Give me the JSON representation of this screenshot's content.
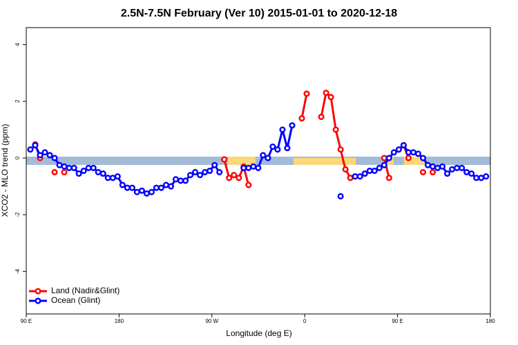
{
  "chart_data": {
    "type": "line",
    "title": "2.5N-7.5N February (Ver 10)   2015-01-01 to 2020-12-18",
    "x_label": "Longitude (deg E)",
    "y_label": "XCO2 - MLO trend (ppm)",
    "xlim": [
      90,
      540
    ],
    "ylim": [
      -5.5,
      4.6
    ],
    "xticks": [
      {
        "value": 90,
        "label": "90 E"
      },
      {
        "value": 180,
        "label": "180"
      },
      {
        "value": 270,
        "label": "90 W"
      },
      {
        "value": 360,
        "label": "0"
      },
      {
        "value": 450,
        "label": "90 E"
      },
      {
        "value": 540,
        "label": "180"
      }
    ],
    "yticks": [
      -4,
      -2,
      0,
      2,
      4
    ],
    "legend": "bottom-left",
    "x": [
      94,
      98.7,
      103.4,
      108.1,
      112.8,
      117.5,
      122.2,
      126.9,
      131.6,
      136.3,
      141,
      145.7,
      150.4,
      155.1,
      159.8,
      164.5,
      169.2,
      173.9,
      178.6,
      183.3,
      188,
      192.7,
      197.4,
      202.1,
      206.8,
      211.5,
      216.2,
      220.9,
      225.6,
      230.3,
      235,
      239.7,
      244.4,
      249.1,
      253.8,
      258.5,
      263.2,
      267.9,
      272.6,
      277.3,
      282,
      286.7,
      291.4,
      296.1,
      300.8,
      305.5,
      310.2,
      314.9,
      319.6,
      324.3,
      329,
      333.7,
      338.4,
      343.1,
      347.8,
      352.5,
      357.2,
      361.9,
      366.6,
      371.3,
      376,
      380.7,
      385.4,
      390.1,
      394.8,
      399.5,
      404.2,
      408.9,
      413.6,
      418.3,
      423,
      427.7,
      432.4,
      437.1,
      441.8,
      446.5,
      451.2,
      455.9,
      460.6,
      465.3,
      470,
      474.7,
      479.4,
      484.1,
      488.8,
      493.5,
      498.2,
      502.9,
      507.6,
      512.3,
      517,
      521.7,
      526.4,
      531.1,
      535.8
    ],
    "series": [
      {
        "name": "Land (Nadir&Glint)",
        "color": "#ff0000",
        "values": [
          null,
          0.48,
          0.0,
          null,
          null,
          -0.5,
          null,
          -0.5,
          null,
          null,
          null,
          null,
          null,
          null,
          null,
          null,
          null,
          null,
          null,
          null,
          null,
          null,
          null,
          null,
          null,
          null,
          null,
          null,
          null,
          null,
          null,
          null,
          null,
          null,
          null,
          null,
          null,
          null,
          null,
          null,
          -0.05,
          -0.7,
          -0.6,
          -0.7,
          -0.3,
          -0.95,
          null,
          null,
          null,
          null,
          null,
          null,
          null,
          null,
          null,
          null,
          1.4,
          2.27,
          null,
          null,
          1.45,
          2.3,
          2.15,
          1.0,
          0.3,
          -0.4,
          -0.7,
          -0.65,
          null,
          null,
          null,
          null,
          null,
          0.0,
          -0.7,
          null,
          null,
          0.45,
          0.0,
          null,
          null,
          -0.5,
          null,
          -0.5,
          null,
          null,
          null,
          null,
          null,
          null,
          null,
          null,
          null,
          null,
          null
        ]
      },
      {
        "name": "Ocean (Glint)",
        "color": "#0000ff",
        "values": [
          0.3,
          0.45,
          0.1,
          0.2,
          0.1,
          0.0,
          -0.25,
          -0.3,
          -0.35,
          -0.35,
          -0.55,
          -0.45,
          -0.35,
          -0.35,
          -0.5,
          -0.55,
          -0.7,
          -0.7,
          -0.65,
          -0.95,
          -1.05,
          -1.05,
          -1.2,
          -1.15,
          -1.25,
          -1.2,
          -1.05,
          -1.05,
          -0.95,
          -1.0,
          -0.75,
          -0.8,
          -0.8,
          -0.6,
          -0.5,
          -0.6,
          -0.5,
          -0.45,
          -0.25,
          -0.5,
          null,
          null,
          null,
          null,
          -0.35,
          -0.35,
          -0.3,
          -0.35,
          0.1,
          0.0,
          0.4,
          0.3,
          1.0,
          0.35,
          1.15,
          null,
          null,
          null,
          null,
          null,
          null,
          null,
          null,
          null,
          -1.35,
          null,
          null,
          -0.65,
          -0.65,
          -0.55,
          -0.45,
          -0.45,
          -0.35,
          -0.25,
          0.0,
          0.2,
          0.3,
          0.45,
          0.2,
          0.2,
          0.15,
          0.0,
          -0.25,
          -0.3,
          -0.35,
          -0.3,
          -0.55,
          -0.4,
          -0.35,
          -0.35,
          -0.5,
          -0.55,
          -0.7,
          -0.7,
          -0.65
        ]
      }
    ]
  }
}
